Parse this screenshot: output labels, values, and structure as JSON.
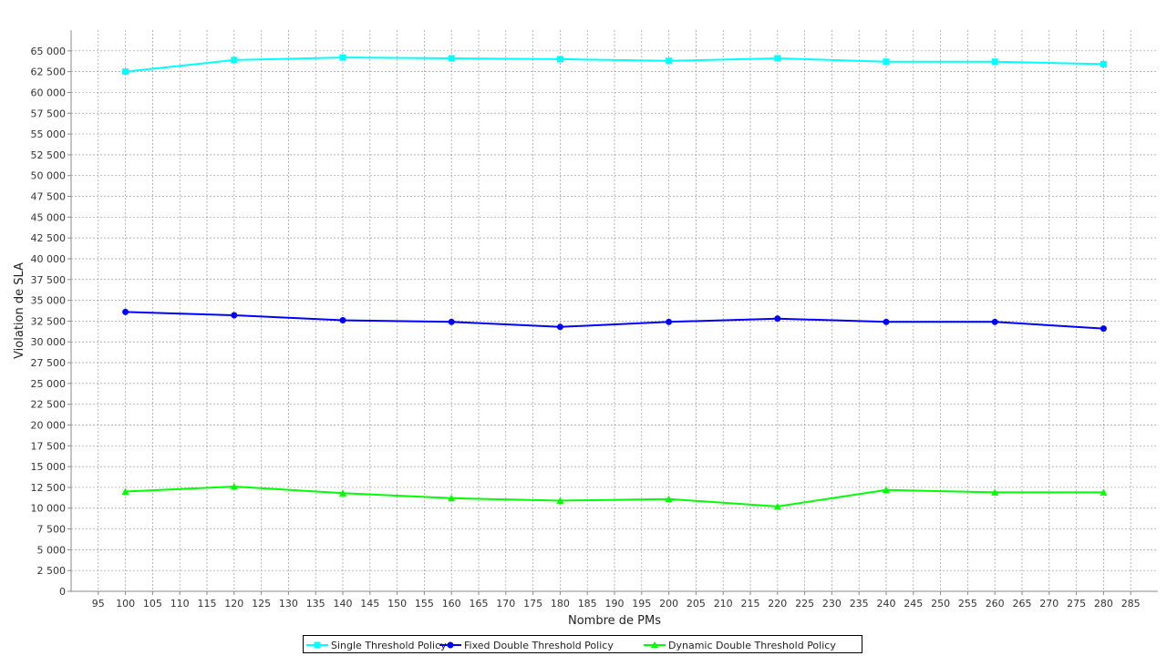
{
  "chart_data": {
    "type": "line",
    "xlabel": "Nombre de PMs",
    "ylabel": "Violation de SLA",
    "xlim": [
      90,
      290
    ],
    "ylim": [
      0,
      67500
    ],
    "x_ticks": [
      "95",
      "100",
      "105",
      "110",
      "115",
      "120",
      "125",
      "130",
      "135",
      "140",
      "145",
      "150",
      "155",
      "160",
      "165",
      "170",
      "175",
      "180",
      "185",
      "190",
      "195",
      "200",
      "205",
      "210",
      "215",
      "220",
      "225",
      "230",
      "235",
      "240",
      "245",
      "250",
      "255",
      "260",
      "265",
      "270",
      "275",
      "280",
      "285"
    ],
    "y_ticks": [
      "0",
      "2 500",
      "5 000",
      "7 500",
      "10 000",
      "12 500",
      "15 000",
      "17 500",
      "20 000",
      "22 500",
      "25 000",
      "27 500",
      "30 000",
      "32 500",
      "35 000",
      "37 500",
      "40 000",
      "42 500",
      "45 000",
      "47 500",
      "50 000",
      "52 500",
      "55 000",
      "57 500",
      "60 000",
      "62 500",
      "65 000"
    ],
    "grid": true,
    "legend_position": "bottom",
    "x": [
      100,
      120,
      140,
      160,
      180,
      200,
      220,
      240,
      260,
      280
    ],
    "series": [
      {
        "name": "Single Threshold Policy",
        "color": "#00ffff",
        "marker": "square",
        "values": [
          62500,
          63900,
          64200,
          64100,
          64000,
          63800,
          64100,
          63700,
          63700,
          63400
        ]
      },
      {
        "name": "Fixed Double Threshold Policy",
        "color": "#0000ff",
        "marker": "circle",
        "values": [
          33600,
          33200,
          32600,
          32400,
          31800,
          32400,
          32800,
          32400,
          32400,
          31600
        ]
      },
      {
        "name": "Dynamic Double Threshold Policy",
        "color": "#00ff00",
        "marker": "triangle",
        "values": [
          12000,
          12600,
          11800,
          11200,
          10900,
          11100,
          10200,
          12200,
          11900,
          11900
        ]
      }
    ]
  }
}
